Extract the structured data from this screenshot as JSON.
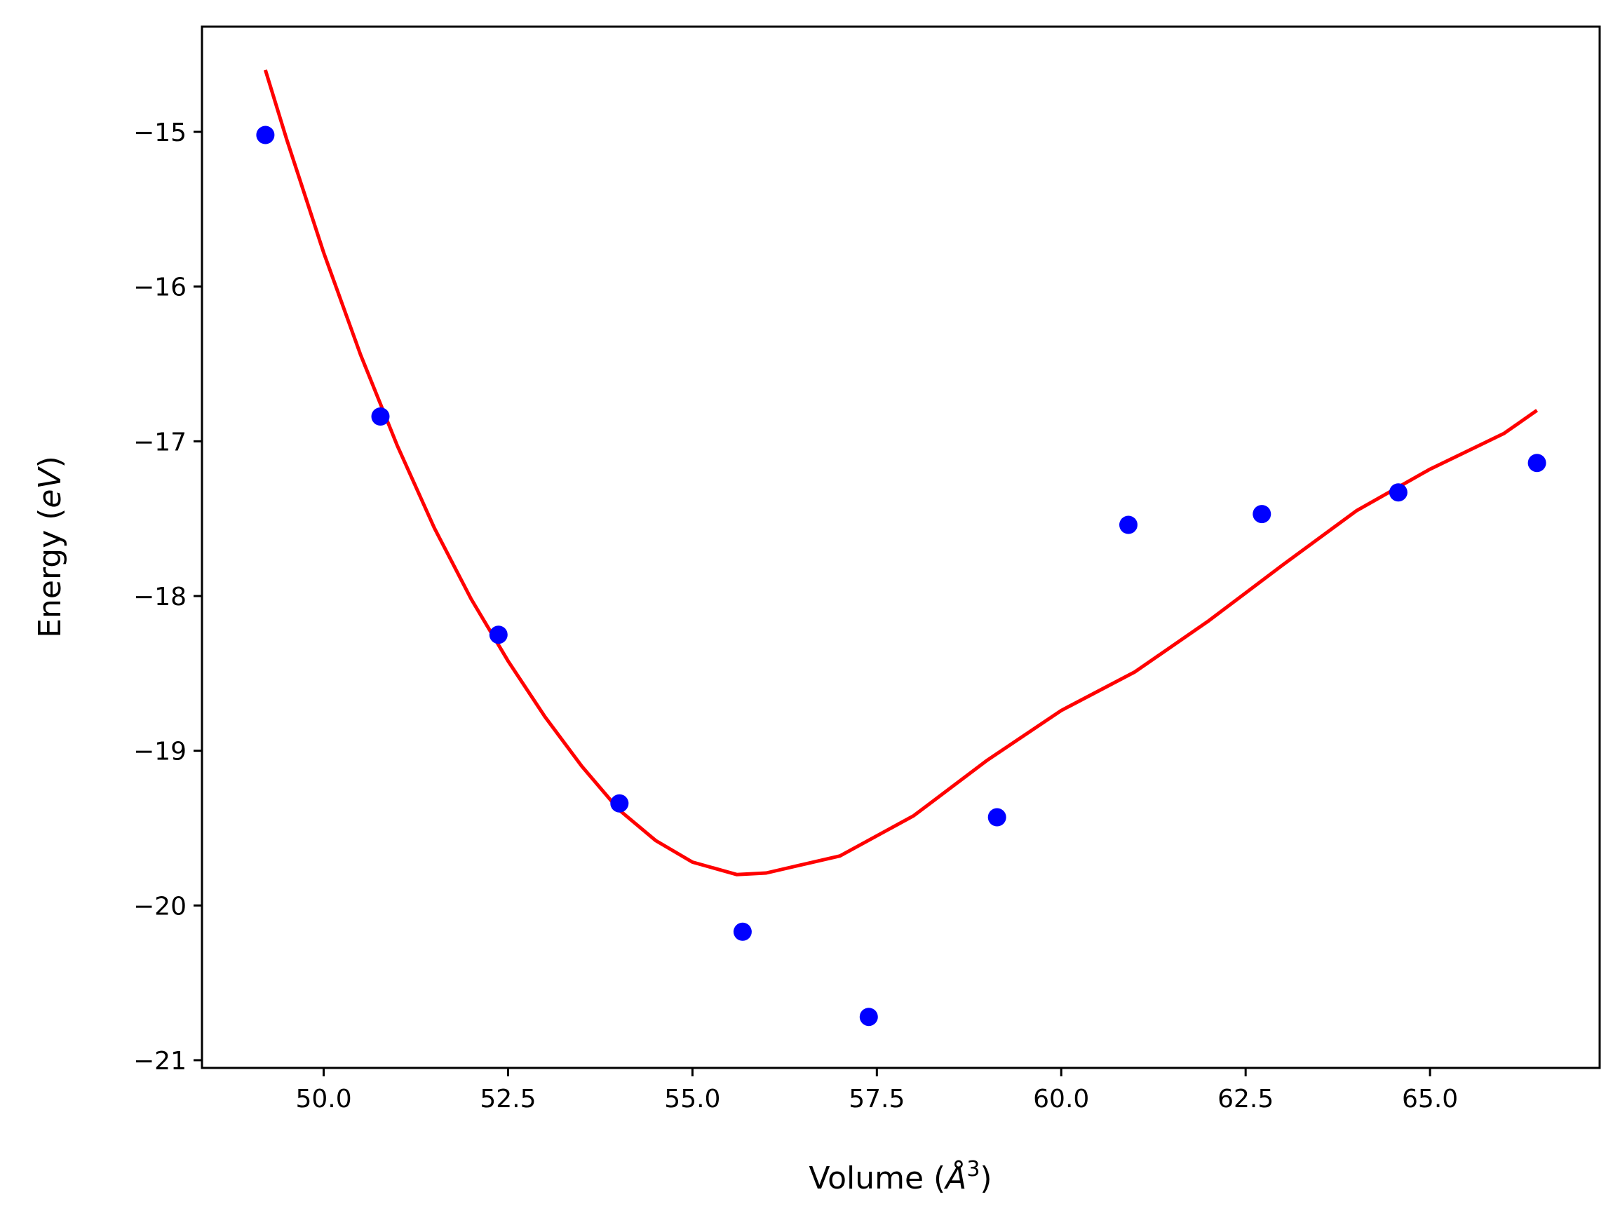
{
  "chart_data": {
    "type": "scatter",
    "xlabel": "Volume (Å³)",
    "ylabel": "Energy (eV)",
    "xlabel_parts": {
      "prefix": "Volume (",
      "symbol": "Å",
      "sup": "3",
      "suffix": ")"
    },
    "ylabel_parts": {
      "prefix": "Energy (",
      "symbol": "eV",
      "suffix": ")"
    },
    "xlim": [
      48.35,
      67.3
    ],
    "ylim": [
      -21.05,
      -14.32
    ],
    "x_ticks": [
      50.0,
      52.5,
      55.0,
      57.5,
      60.0,
      62.5,
      65.0
    ],
    "x_tick_labels": [
      "50.0",
      "52.5",
      "55.0",
      "57.5",
      "60.0",
      "62.5",
      "65.0"
    ],
    "y_ticks": [
      -15,
      -16,
      -17,
      -18,
      -19,
      -20,
      -21
    ],
    "y_tick_labels": [
      "−15",
      "−16",
      "−17",
      "−18",
      "−19",
      "−20",
      "−21"
    ],
    "grid": false,
    "series": [
      {
        "kind": "scatter",
        "color": "#0000ff",
        "x": [
          49.21,
          50.77,
          52.37,
          54.01,
          55.68,
          57.39,
          59.13,
          60.91,
          62.72,
          64.57,
          66.45
        ],
        "y": [
          -15.02,
          -16.84,
          -18.25,
          -19.34,
          -20.17,
          -20.72,
          -19.43,
          -17.54,
          -17.47,
          -17.33,
          -17.14
        ]
      },
      {
        "kind": "line",
        "color": "#ff0000",
        "x": [
          49.21,
          49.5,
          50.0,
          50.5,
          51.0,
          51.5,
          52.0,
          52.5,
          53.0,
          53.5,
          54.0,
          54.5,
          55.0,
          55.6,
          56.0,
          57.0,
          58.0,
          59.0,
          60.0,
          61.0,
          62.0,
          63.0,
          64.0,
          65.0,
          66.0,
          66.45
        ],
        "y": [
          -14.6,
          -15.05,
          -15.78,
          -16.44,
          -17.03,
          -17.56,
          -18.02,
          -18.42,
          -18.78,
          -19.1,
          -19.38,
          -19.58,
          -19.72,
          -19.8,
          -19.79,
          -19.68,
          -19.42,
          -19.06,
          -18.74,
          -18.49,
          -18.16,
          -17.8,
          -17.45,
          -17.18,
          -16.95,
          -16.8
        ]
      }
    ]
  }
}
